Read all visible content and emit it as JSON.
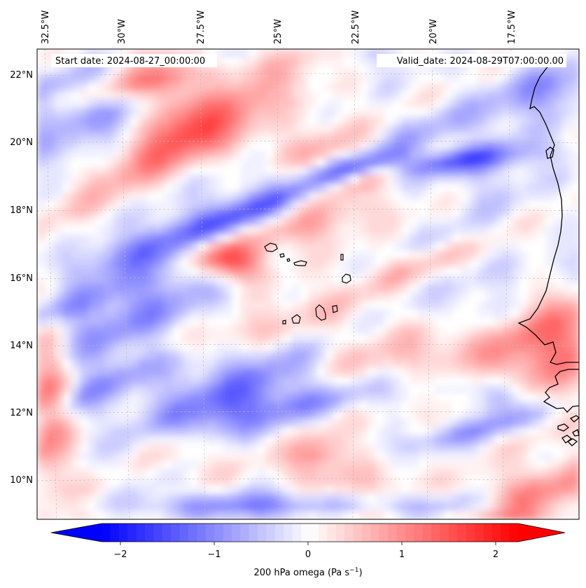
{
  "map": {
    "start_date_text": "Start date: 2024-08-27_00:00:00",
    "valid_date_text": "Valid_date: 2024-08-29T07:00:00.00",
    "variable": "omega",
    "level": "200 hPa",
    "extent": {
      "lon_min": -33.0,
      "lon_max": -15.0,
      "lat_min": 8.9,
      "lat_max": 22.8
    },
    "projection": "lambert-conformal (curved meridians)",
    "gridlines": "dashed light gray",
    "lon_ticks": [
      {
        "value": -32.5,
        "label": "32.5°W"
      },
      {
        "value": -30.0,
        "label": "30°W"
      },
      {
        "value": -27.5,
        "label": "27.5°W"
      },
      {
        "value": -25.0,
        "label": "25°W"
      },
      {
        "value": -22.5,
        "label": "22.5°W"
      },
      {
        "value": -20.0,
        "label": "20°W"
      },
      {
        "value": -17.5,
        "label": "17.5°W"
      }
    ],
    "lat_ticks": [
      {
        "value": 22,
        "label": "22°N"
      },
      {
        "value": 20,
        "label": "20°N"
      },
      {
        "value": 18,
        "label": "18°N"
      },
      {
        "value": 16,
        "label": "16°N"
      },
      {
        "value": 14,
        "label": "14°N"
      },
      {
        "value": 12,
        "label": "12°N"
      },
      {
        "value": 10,
        "label": "10°N"
      }
    ],
    "features": [
      "cape-verde-islands",
      "west-africa-coastline"
    ]
  },
  "colorbar": {
    "label_prefix": "200 hPa omega (Pa s",
    "label_exp": "−1",
    "label_suffix": ")",
    "min": -2.5,
    "max": 2.5,
    "extend": "both",
    "cmap": "bwr",
    "colors": {
      "low": "#0000ff",
      "mid": "#ffffff",
      "high": "#ff0000"
    },
    "ticks": [
      {
        "value": -2,
        "label": "−2"
      },
      {
        "value": -1,
        "label": "−1"
      },
      {
        "value": 0,
        "label": "0"
      },
      {
        "value": 1,
        "label": "1"
      },
      {
        "value": 2,
        "label": "2"
      }
    ]
  }
}
